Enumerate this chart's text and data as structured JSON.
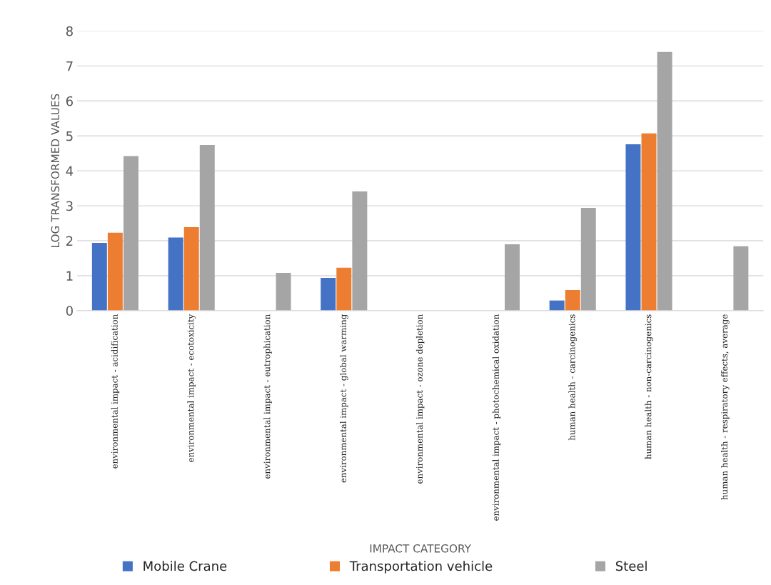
{
  "chart_data": {
    "type": "bar",
    "xlabel": "IMPACT CATEGORY",
    "ylabel": "LOG TRANSFORMED VALUES",
    "categories": [
      "environmental impact - acidification",
      "environmental impact - ecotoxicity",
      "environmental impact - eutrophication",
      "environmental impact - global warming",
      "environmental impact - ozone depletion",
      "environmental impact - photochemical oxidation",
      "human health - carcinogenics",
      "human health - non-carcinogenics",
      "human health - respiratory effects, average"
    ],
    "series": [
      {
        "name": "Mobile Crane",
        "color": "#4472c4",
        "values": [
          1.94,
          2.09,
          null,
          0.94,
          null,
          null,
          0.29,
          4.76,
          null
        ]
      },
      {
        "name": "Transportation vehicle",
        "color": "#ed7d31",
        "values": [
          2.23,
          2.39,
          null,
          1.23,
          null,
          null,
          0.59,
          5.07,
          null
        ]
      },
      {
        "name": "Steel",
        "color": "#a5a5a5",
        "values": [
          4.42,
          4.74,
          1.08,
          3.41,
          null,
          1.9,
          2.94,
          7.4,
          1.84
        ]
      }
    ],
    "ylim": [
      0,
      8
    ],
    "yticks": [
      0,
      1,
      2,
      3,
      4,
      5,
      6,
      7,
      8
    ],
    "grid": "y",
    "legend": "bottom"
  }
}
